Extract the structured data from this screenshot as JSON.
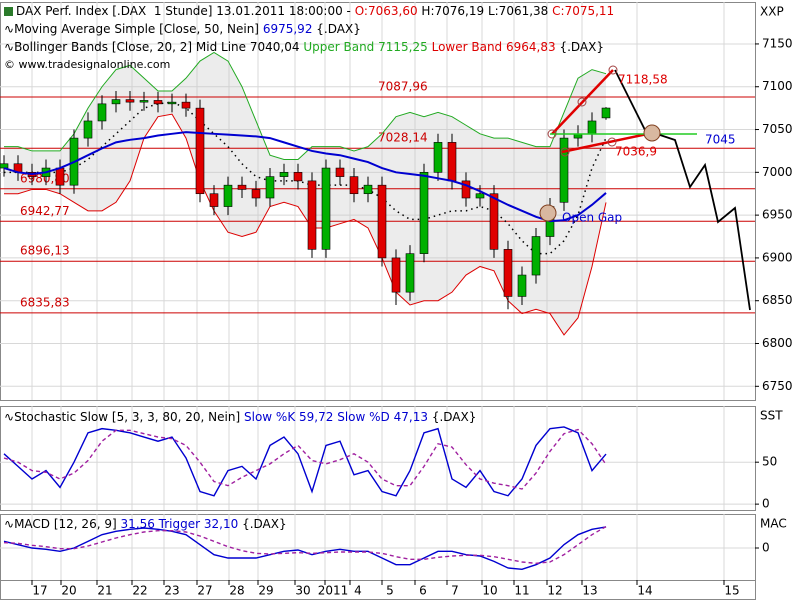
{
  "chart_data": [
    {
      "type": "candlestick",
      "title": "DAX Perf. Index [.DAX  1 Stunde] 13.01.2011 18:00:00 -",
      "ohlc_labels": {
        "open": "O:7063,60",
        "high": "H:7076,19",
        "low": "L:7061,38",
        "close": "C:7075,11"
      },
      "credit": "© www.tradesignalonline.com",
      "source": "{.DAX}",
      "axis_label": "XXP",
      "bands_title": "Bollinger Bands [Close, 20, 2]",
      "x_labels": [
        "17",
        "20",
        "21",
        "22",
        "23",
        "27",
        "28",
        "29",
        "30",
        "2011",
        "4",
        "5",
        "6",
        "7",
        "10",
        "11",
        "12",
        "13",
        "14",
        "15"
      ],
      "open": [
        7005,
        7010,
        7000,
        6995,
        7005,
        6985,
        7040,
        7060,
        7080,
        7085,
        7082,
        7084,
        7080,
        7082,
        7075,
        6975,
        6960,
        6985,
        6980,
        6970,
        6995,
        7000,
        6990,
        6910,
        7005,
        6995,
        6975,
        6985,
        6900,
        6860,
        6905,
        7000,
        7035,
        6990,
        6970,
        6975,
        6910,
        6855,
        6880,
        6925,
        6965,
        7040,
        7045,
        7063.6
      ],
      "high": [
        7020,
        7020,
        7010,
        7015,
        7015,
        7050,
        7070,
        7090,
        7095,
        7095,
        7094,
        7094,
        7092,
        7092,
        7085,
        6985,
        6995,
        6995,
        6990,
        7005,
        7010,
        7010,
        7000,
        7015,
        7015,
        7005,
        6995,
        6995,
        6910,
        6915,
        7010,
        7045,
        7045,
        7000,
        6985,
        6985,
        6920,
        6890,
        6935,
        6970,
        7050,
        7055,
        7070,
        7076.19
      ],
      "low": [
        6995,
        6990,
        6985,
        6985,
        6975,
        6975,
        7030,
        7050,
        7070,
        7072,
        7072,
        7070,
        7070,
        7065,
        6965,
        6950,
        6950,
        6970,
        6960,
        6960,
        6985,
        6980,
        6900,
        6900,
        6985,
        6965,
        6965,
        6890,
        6845,
        6850,
        6895,
        6990,
        6980,
        6960,
        6960,
        6900,
        6840,
        6845,
        6870,
        6915,
        6955,
        7030,
        7035,
        7061.38
      ],
      "close": [
        7010,
        7000,
        6995,
        7005,
        6985,
        7040,
        7060,
        7080,
        7085,
        7082,
        7084,
        7080,
        7082,
        7075,
        6975,
        6960,
        6985,
        6980,
        6970,
        6995,
        7000,
        6990,
        6910,
        7005,
        6995,
        6975,
        6985,
        6900,
        6860,
        6905,
        7000,
        7035,
        6990,
        6970,
        6975,
        6910,
        6855,
        6880,
        6925,
        6960,
        7040,
        7045,
        7060,
        7075.11
      ],
      "up_color": "#00b000",
      "down_color": "#e00000",
      "series": [
        {
          "name": "Moving Average Simple [Close, 50, Nein]",
          "value_label": "6975,92",
          "color": "#0000d0",
          "values": [
            7005,
            7000,
            6998,
            7000,
            7005,
            7012,
            7020,
            7028,
            7035,
            7038,
            7040,
            7043,
            7045,
            7047,
            7046,
            7045,
            7044,
            7043,
            7042,
            7040,
            7035,
            7030,
            7025,
            7022,
            7020,
            7016,
            7012,
            7005,
            7000,
            6998,
            6996,
            6993,
            6990,
            6985,
            6978,
            6970,
            6962,
            6955,
            6948,
            6943,
            6944,
            6950,
            6962,
            6975.92
          ]
        },
        {
          "name": "Mid Line",
          "value_label": "7040,04",
          "color": "#000000",
          "values": [
            7000,
            7000,
            7000,
            7000,
            7000,
            7005,
            7015,
            7030,
            7045,
            7060,
            7075,
            7080,
            7082,
            7075,
            7060,
            7045,
            7030,
            7010,
            6995,
            6990,
            6990,
            6990,
            6985,
            6985,
            6985,
            6985,
            6980,
            6970,
            6955,
            6945,
            6945,
            6950,
            6955,
            6955,
            6960,
            6955,
            6940,
            6920,
            6905,
            6905,
            6920,
            6950,
            7005,
            7040.04
          ]
        },
        {
          "name": "Upper Band",
          "value_label": "7115,25",
          "color": "#22aa22",
          "values": [
            7030,
            7030,
            7025,
            7025,
            7025,
            7045,
            7075,
            7100,
            7120,
            7125,
            7110,
            7095,
            7095,
            7110,
            7130,
            7140,
            7130,
            7100,
            7060,
            7020,
            7015,
            7015,
            7030,
            7030,
            7030,
            7025,
            7030,
            7045,
            7065,
            7070,
            7065,
            7070,
            7065,
            7055,
            7045,
            7040,
            7040,
            7035,
            7030,
            7030,
            7070,
            7110,
            7120,
            7115.25
          ]
        },
        {
          "name": "Lower Band",
          "value_label": "6964,83",
          "color": "#dd0000",
          "values": [
            6975,
            6975,
            6980,
            6980,
            6975,
            6965,
            6955,
            6955,
            6965,
            6990,
            7040,
            7065,
            7068,
            7040,
            6990,
            6955,
            6930,
            6925,
            6930,
            6960,
            6965,
            6960,
            6935,
            6935,
            6940,
            6945,
            6935,
            6900,
            6860,
            6845,
            6850,
            6850,
            6860,
            6880,
            6890,
            6885,
            6850,
            6835,
            6840,
            6835,
            6810,
            6830,
            6890,
            6964.83
          ]
        }
      ],
      "levels": [
        {
          "value": 7087.96,
          "label": "7087,96"
        },
        {
          "value": 7028.14,
          "label": "7028,14"
        },
        {
          "value": 6980.8,
          "label": "6980,80"
        },
        {
          "value": 6942.77,
          "label": "6942,77"
        },
        {
          "value": 6896.13,
          "label": "6896,13"
        },
        {
          "value": 6835.83,
          "label": "6835,83"
        }
      ],
      "level_color": "#cc0000",
      "annotations": [
        "7118,58",
        "7036,9",
        "7045",
        "Open Gap"
      ],
      "ylim": [
        6734,
        7199
      ],
      "yticks": [
        6750,
        6800,
        6850,
        6900,
        6950,
        7000,
        7050,
        7100,
        7150
      ],
      "grid": true
    },
    {
      "type": "line",
      "title": "Stochastic Slow [5, 3, 3, 80, 20, Nein]",
      "source": "{.DAX}",
      "axis_label": "SST",
      "series": [
        {
          "name": "Slow %K",
          "value_label": "59,72",
          "color": "#0000d0",
          "values": [
            60,
            45,
            30,
            40,
            20,
            50,
            85,
            90,
            88,
            85,
            80,
            75,
            80,
            55,
            15,
            10,
            40,
            45,
            30,
            70,
            80,
            60,
            15,
            70,
            75,
            35,
            40,
            15,
            10,
            40,
            85,
            90,
            30,
            20,
            40,
            15,
            10,
            30,
            70,
            90,
            92,
            85,
            40,
            59.72
          ]
        },
        {
          "name": "Slow %D",
          "value_label": "47,13",
          "color": "#a020a0",
          "dashed": true,
          "values": [
            55,
            50,
            40,
            38,
            30,
            37,
            52,
            75,
            88,
            88,
            84,
            80,
            78,
            70,
            50,
            27,
            22,
            32,
            40,
            48,
            60,
            70,
            52,
            48,
            53,
            60,
            50,
            30,
            22,
            22,
            45,
            72,
            68,
            47,
            30,
            25,
            22,
            18,
            37,
            63,
            84,
            89,
            72,
            47.13
          ]
        }
      ],
      "ylim": [
        -7,
        117
      ],
      "yticks": [
        0,
        50
      ],
      "grid": true
    },
    {
      "type": "line",
      "source": "{.DAX}",
      "axis_label": "MAC",
      "series": [
        {
          "name": "MACD [12, 26, 9]",
          "value_label": "31,56",
          "color": "#0000d0",
          "values": [
            10,
            5,
            0,
            -2,
            -5,
            0,
            10,
            20,
            25,
            28,
            30,
            28,
            25,
            20,
            5,
            -10,
            -15,
            -15,
            -15,
            -10,
            -5,
            -3,
            -10,
            -5,
            -2,
            -5,
            -5,
            -15,
            -25,
            -25,
            -15,
            -5,
            -5,
            -10,
            -12,
            -20,
            -30,
            -32,
            -25,
            -15,
            5,
            20,
            28,
            31.56
          ]
        },
        {
          "name": "Trigger",
          "value_label": "32,10",
          "color": "#a020a0",
          "dashed": true,
          "values": [
            8,
            7,
            4,
            2,
            -1,
            -1,
            3,
            9,
            15,
            20,
            24,
            26,
            26,
            24,
            18,
            10,
            2,
            -4,
            -8,
            -9,
            -8,
            -7,
            -8,
            -7,
            -6,
            -6,
            -6,
            -8,
            -13,
            -17,
            -17,
            -14,
            -12,
            -11,
            -11,
            -13,
            -17,
            -21,
            -23,
            -21,
            -10,
            5,
            20,
            32.1
          ]
        }
      ],
      "ylim": [
        -48,
        51
      ],
      "yticks": [
        0
      ],
      "grid": true
    }
  ]
}
